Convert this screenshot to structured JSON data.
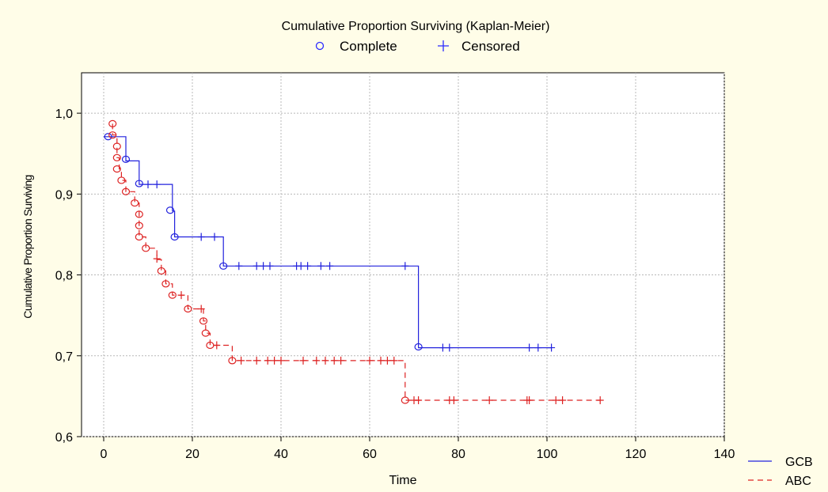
{
  "chart_data": {
    "type": "line",
    "title": "Cumulative Proportion Surviving (Kaplan-Meier)",
    "xlabel": "Time",
    "ylabel": "Cumulative Proportion Surviving",
    "xlim": [
      -5,
      140
    ],
    "ylim": [
      0.6,
      1.05
    ],
    "xticks": [
      0,
      20,
      40,
      60,
      80,
      100,
      120,
      140
    ],
    "xtick_labels": [
      "0",
      "20",
      "40",
      "60",
      "80",
      "100",
      "120",
      "140"
    ],
    "yticks": [
      0.6,
      0.7,
      0.8,
      0.9,
      1.0
    ],
    "ytick_labels": [
      "0,6",
      "0,7",
      "0,8",
      "0,9",
      "1,0"
    ],
    "grid": true,
    "marker_legend": {
      "position": "top-center",
      "complete_label": "Complete",
      "censored_label": "Censored",
      "complete_color": "#2a2aff",
      "censored_color": "#2a2aff"
    },
    "series_legend_position": "bottom-right",
    "series": [
      {
        "name": "GCB",
        "color": "#2222dd",
        "dash": "solid",
        "steps": [
          [
            0,
            0.971
          ],
          [
            5,
            0.941
          ],
          [
            8,
            0.912
          ],
          [
            15.5,
            0.879
          ],
          [
            16,
            0.847
          ],
          [
            27,
            0.811
          ],
          [
            71,
            0.71
          ],
          [
            101,
            0.71
          ]
        ],
        "complete": [
          [
            1,
            0.971
          ],
          [
            5,
            0.943
          ],
          [
            8,
            0.913
          ],
          [
            15,
            0.88
          ],
          [
            16,
            0.847
          ],
          [
            27,
            0.811
          ],
          [
            71,
            0.711
          ]
        ],
        "censored": [
          [
            10,
            0.912
          ],
          [
            12,
            0.912
          ],
          [
            22,
            0.847
          ],
          [
            25,
            0.847
          ],
          [
            30.5,
            0.811
          ],
          [
            34.5,
            0.811
          ],
          [
            36,
            0.811
          ],
          [
            37.5,
            0.811
          ],
          [
            43.5,
            0.811
          ],
          [
            44.5,
            0.811
          ],
          [
            46,
            0.811
          ],
          [
            49,
            0.811
          ],
          [
            51,
            0.811
          ],
          [
            68,
            0.811
          ],
          [
            76.5,
            0.71
          ],
          [
            78,
            0.71
          ],
          [
            96,
            0.71
          ],
          [
            98,
            0.71
          ],
          [
            101,
            0.71
          ]
        ]
      },
      {
        "name": "ABC",
        "color": "#dd2222",
        "dash": "dashed",
        "steps": [
          [
            2,
            0.987
          ],
          [
            2,
            0.973
          ],
          [
            3,
            0.959
          ],
          [
            3,
            0.945
          ],
          [
            3.5,
            0.931
          ],
          [
            4,
            0.917
          ],
          [
            5,
            0.903
          ],
          [
            7,
            0.889
          ],
          [
            8,
            0.875
          ],
          [
            8,
            0.861
          ],
          [
            8,
            0.847
          ],
          [
            9.5,
            0.833
          ],
          [
            12,
            0.819
          ],
          [
            13,
            0.805
          ],
          [
            14,
            0.789
          ],
          [
            15.5,
            0.775
          ],
          [
            19,
            0.758
          ],
          [
            22.5,
            0.743
          ],
          [
            23,
            0.728
          ],
          [
            24,
            0.713
          ],
          [
            29,
            0.694
          ],
          [
            68,
            0.645
          ],
          [
            112,
            0.645
          ]
        ],
        "complete": [
          [
            2,
            0.987
          ],
          [
            2,
            0.973
          ],
          [
            3,
            0.959
          ],
          [
            3,
            0.945
          ],
          [
            3,
            0.931
          ],
          [
            4,
            0.917
          ],
          [
            5,
            0.903
          ],
          [
            7,
            0.889
          ],
          [
            8,
            0.875
          ],
          [
            8,
            0.861
          ],
          [
            8,
            0.847
          ],
          [
            9.5,
            0.833
          ],
          [
            13,
            0.805
          ],
          [
            14,
            0.789
          ],
          [
            15.5,
            0.775
          ],
          [
            19,
            0.758
          ],
          [
            22.5,
            0.743
          ],
          [
            23,
            0.728
          ],
          [
            24,
            0.713
          ],
          [
            29,
            0.694
          ],
          [
            68,
            0.645
          ]
        ],
        "censored": [
          [
            12,
            0.82
          ],
          [
            17.5,
            0.775
          ],
          [
            22,
            0.758
          ],
          [
            25.5,
            0.713
          ],
          [
            31,
            0.694
          ],
          [
            34.5,
            0.694
          ],
          [
            37,
            0.694
          ],
          [
            38.5,
            0.694
          ],
          [
            40,
            0.694
          ],
          [
            45,
            0.694
          ],
          [
            48,
            0.694
          ],
          [
            50,
            0.694
          ],
          [
            52,
            0.694
          ],
          [
            53.5,
            0.694
          ],
          [
            60,
            0.694
          ],
          [
            62.5,
            0.694
          ],
          [
            64,
            0.694
          ],
          [
            65.5,
            0.694
          ],
          [
            70,
            0.645
          ],
          [
            71,
            0.645
          ],
          [
            78,
            0.645
          ],
          [
            79,
            0.645
          ],
          [
            87,
            0.645
          ],
          [
            95.5,
            0.645
          ],
          [
            96,
            0.645
          ],
          [
            102,
            0.645
          ],
          [
            103.5,
            0.645
          ],
          [
            112,
            0.645
          ]
        ]
      }
    ]
  }
}
